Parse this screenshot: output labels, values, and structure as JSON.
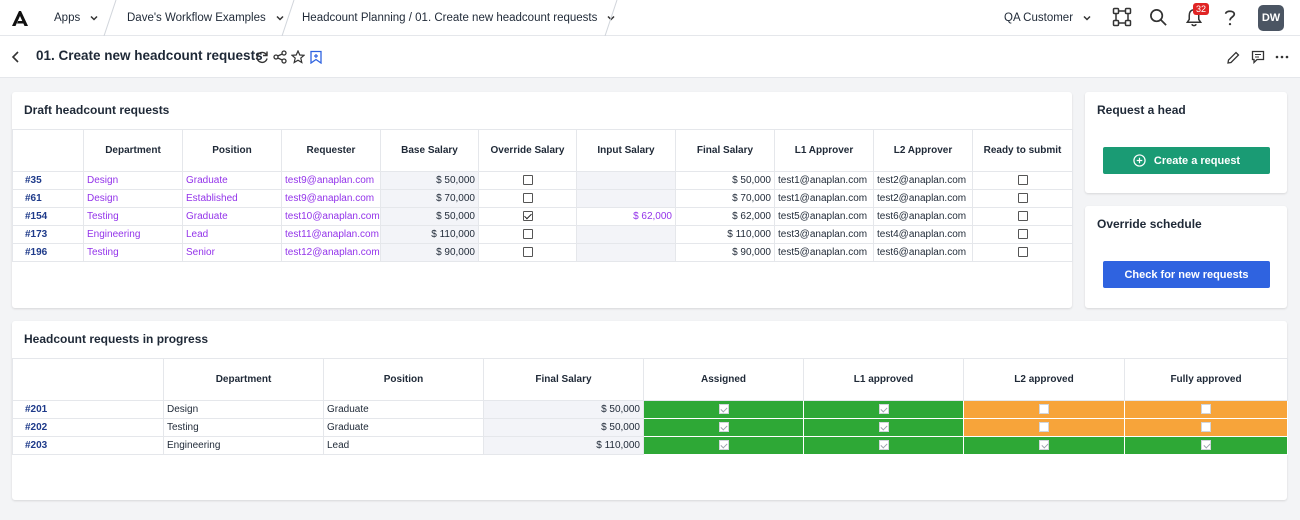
{
  "topbar": {
    "apps_label": "Apps",
    "workspace_label": "Dave's Workflow Examples",
    "page_path_label": "Headcount Planning / 01. Create new headcount requests",
    "customer_label": "QA Customer",
    "notification_count": "32",
    "avatar_initials": "DW"
  },
  "page": {
    "title": "01. Create new headcount requests"
  },
  "draft": {
    "title": "Draft headcount requests",
    "columns": [
      "Department",
      "Position",
      "Requester",
      "Base Salary",
      "Override Salary",
      "Input Salary",
      "Final Salary",
      "L1 Approver",
      "L2 Approver",
      "Ready to submit"
    ],
    "rows": [
      {
        "id": "#35",
        "department": "Design",
        "position": "Graduate",
        "requester": "test9@anaplan.com",
        "base_salary": "$ 50,000",
        "override": false,
        "input_salary": "",
        "final_salary": "$ 50,000",
        "l1": "test1@anaplan.com",
        "l2": "test2@anaplan.com",
        "ready": false
      },
      {
        "id": "#61",
        "department": "Design",
        "position": "Established",
        "requester": "test9@anaplan.com",
        "base_salary": "$ 70,000",
        "override": false,
        "input_salary": "",
        "final_salary": "$ 70,000",
        "l1": "test1@anaplan.com",
        "l2": "test2@anaplan.com",
        "ready": false
      },
      {
        "id": "#154",
        "department": "Testing",
        "position": "Graduate",
        "requester": "test10@anaplan.com",
        "base_salary": "$ 50,000",
        "override": true,
        "input_salary": "$ 62,000",
        "final_salary": "$ 62,000",
        "l1": "test5@anaplan.com",
        "l2": "test6@anaplan.com",
        "ready": false
      },
      {
        "id": "#173",
        "department": "Engineering",
        "position": "Lead",
        "requester": "test11@anaplan.com",
        "base_salary": "$ 110,000",
        "override": false,
        "input_salary": "",
        "final_salary": "$ 110,000",
        "l1": "test3@anaplan.com",
        "l2": "test4@anaplan.com",
        "ready": false
      },
      {
        "id": "#196",
        "department": "Testing",
        "position": "Senior",
        "requester": "test12@anaplan.com",
        "base_salary": "$ 90,000",
        "override": false,
        "input_salary": "",
        "final_salary": "$ 90,000",
        "l1": "test5@anaplan.com",
        "l2": "test6@anaplan.com",
        "ready": false
      }
    ]
  },
  "request_panel": {
    "title": "Request a head",
    "button_label": "Create a request",
    "button_color": "#1a9b74"
  },
  "schedule_panel": {
    "title": "Override schedule",
    "button_label": "Check for new requests",
    "button_color": "#2f63e0"
  },
  "progress": {
    "title": "Headcount requests in progress",
    "columns": [
      "Department",
      "Position",
      "Final Salary",
      "Assigned",
      "L1 approved",
      "L2 approved",
      "Fully approved"
    ],
    "rows": [
      {
        "id": "#201",
        "department": "Design",
        "position": "Graduate",
        "final_salary": "$ 50,000",
        "assigned": true,
        "l1_approved": true,
        "l2_approved": false,
        "fully_approved": false
      },
      {
        "id": "#202",
        "department": "Testing",
        "position": "Graduate",
        "final_salary": "$ 50,000",
        "assigned": true,
        "l1_approved": true,
        "l2_approved": false,
        "fully_approved": false
      },
      {
        "id": "#203",
        "department": "Engineering",
        "position": "Lead",
        "final_salary": "$ 110,000",
        "assigned": true,
        "l1_approved": true,
        "l2_approved": true,
        "fully_approved": true
      }
    ]
  },
  "colors": {
    "approved_true": "#2ea836",
    "approved_false": "#f7a43a",
    "link_purple": "#9333ea",
    "row_id_blue": "#1e3a8a"
  },
  "icons": [
    "anaplan-logo-icon",
    "chevron-down-icon",
    "workflow-icon",
    "search-icon",
    "bell-icon",
    "help-icon",
    "back-icon",
    "refresh-icon",
    "share-icon",
    "star-icon",
    "bookmark-icon",
    "pencil-icon",
    "comment-icon",
    "more-icon",
    "plus-circle-icon"
  ]
}
